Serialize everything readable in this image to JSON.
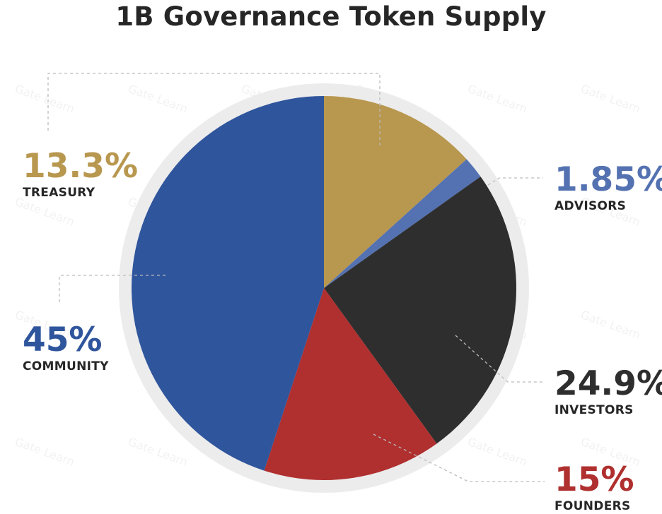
{
  "chart_data": {
    "type": "pie",
    "title": "1B Governance Token Supply",
    "slices": [
      {
        "label": "TREASURY",
        "pct_label": "13.3%",
        "value": 13.3,
        "color": "#b8974f"
      },
      {
        "label": "ADVISORS",
        "pct_label": "1.85%",
        "value": 1.85,
        "color": "#5472b1"
      },
      {
        "label": "INVESTORS",
        "pct_label": "24.9%",
        "value": 24.9,
        "color": "#2e2e2e"
      },
      {
        "label": "FOUNDERS",
        "pct_label": "15%",
        "value": 15,
        "color": "#b02f2f"
      },
      {
        "label": "COMMUNITY",
        "pct_label": "45%",
        "value": 45,
        "color": "#2f559c"
      }
    ],
    "start_angle_deg": 0,
    "direction": "clockwise",
    "legend": "none"
  },
  "watermark": "Gate Learn",
  "colors": {
    "ring": "#ececec",
    "leader": "#bbbbbb",
    "text": "#262626"
  }
}
